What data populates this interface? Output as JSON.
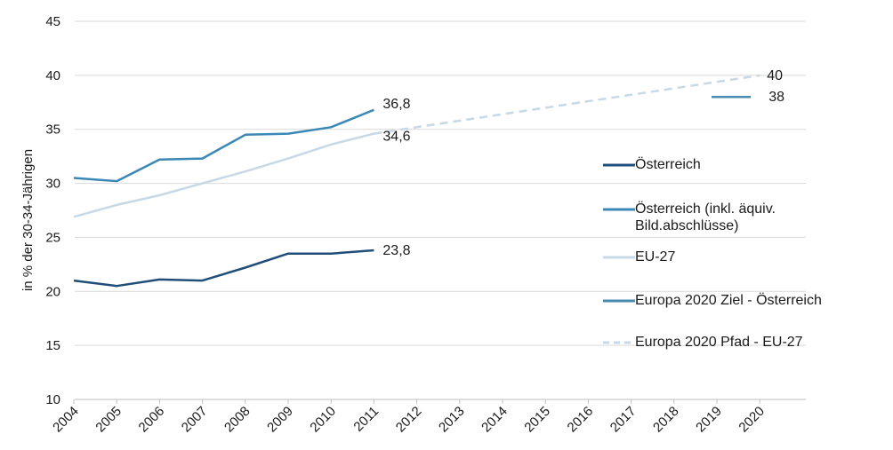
{
  "chart_data": {
    "type": "line",
    "title": "",
    "xlabel": "",
    "ylabel": "in % der 30-34-Jährigen",
    "x": [
      "2004",
      "2005",
      "2006",
      "2007",
      "2008",
      "2009",
      "2010",
      "2011",
      "2012",
      "2013",
      "2014",
      "2015",
      "2016",
      "2017",
      "2018",
      "2019",
      "2020"
    ],
    "ylim": [
      10,
      45
    ],
    "yticks": [
      "10",
      "15",
      "20",
      "25",
      "30",
      "35",
      "40",
      "45"
    ],
    "grid": true,
    "legend_position": "right",
    "series": [
      {
        "name": "Österreich",
        "color": "#1f4e79",
        "dash": false,
        "values": [
          21.0,
          20.5,
          21.1,
          21.0,
          22.2,
          23.5,
          23.5,
          23.8,
          null,
          null,
          null,
          null,
          null,
          null,
          null,
          null,
          null
        ],
        "end_label": "23,8"
      },
      {
        "name": "Österreich (inkl. äquiv. Bild.abschlüsse)",
        "color": "#3b87b5",
        "dash": false,
        "values": [
          30.5,
          30.2,
          32.2,
          32.3,
          34.5,
          34.6,
          35.2,
          36.8,
          null,
          null,
          null,
          null,
          null,
          null,
          null,
          null,
          null
        ],
        "end_label": "36,8"
      },
      {
        "name": "EU-27",
        "color": "#c7d8e6",
        "dash": false,
        "values": [
          26.9,
          28.0,
          28.9,
          30.0,
          31.1,
          32.3,
          33.6,
          34.6,
          null,
          null,
          null,
          null,
          null,
          null,
          null,
          null,
          null
        ],
        "end_label": "34,6"
      },
      {
        "name": "Europa 2020 Ziel - Österreich",
        "color": "#4a8bb2",
        "dash": false,
        "values": [
          null,
          null,
          null,
          null,
          null,
          null,
          null,
          null,
          null,
          null,
          null,
          null,
          null,
          null,
          null,
          38.0,
          38.0
        ],
        "end_label": "38"
      },
      {
        "name": "Europa 2020 Pfad - EU-27",
        "color": "#c7d8e6",
        "dash": true,
        "values": [
          null,
          null,
          null,
          null,
          null,
          null,
          null,
          34.6,
          null,
          null,
          null,
          null,
          null,
          null,
          null,
          null,
          40.0
        ],
        "end_label": "40"
      }
    ]
  }
}
